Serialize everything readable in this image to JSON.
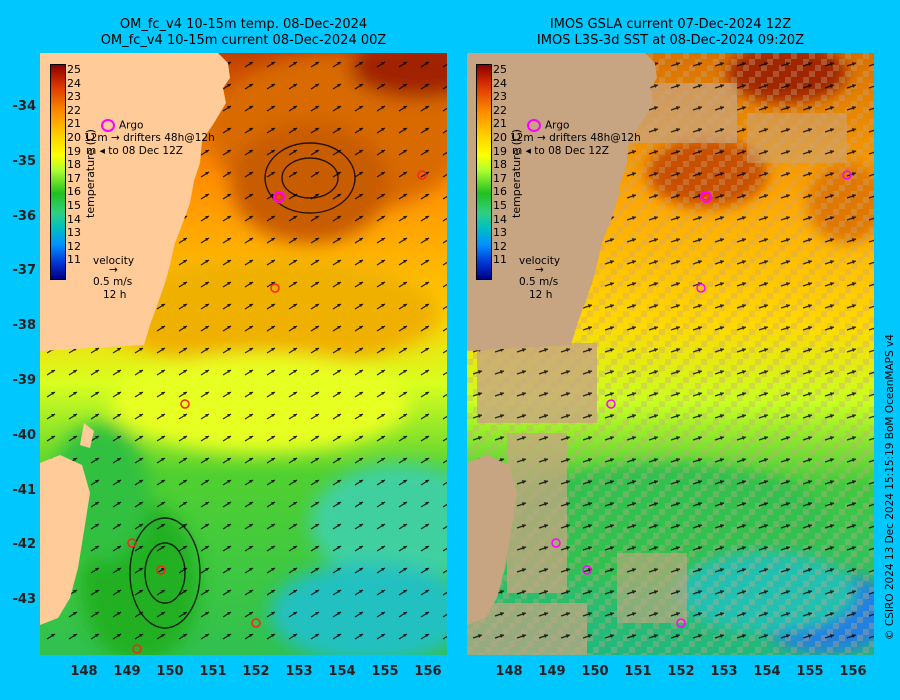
{
  "left_panel": {
    "title_line1": "OM_fc_v4  10-15m temp. 08-Dec-2024",
    "title_line2": "OM_fc_v4  10-15m current 08-Dec-2024 00Z"
  },
  "right_panel": {
    "title_line1": "IMOS GSLA current 07-Dec-2024 12Z",
    "title_line2": "IMOS L3S-3d SST at 08-Dec-2024 09:20Z"
  },
  "colorbar": {
    "ticks": [
      "25",
      "24",
      "23",
      "22",
      "21",
      "20",
      "19",
      "18",
      "17",
      "16",
      "15",
      "14",
      "13",
      "12",
      "11"
    ],
    "unit": "temperature (C)"
  },
  "legend": {
    "argo": "Argo",
    "drifters_a": "12m",
    "drifters_b": "drifters 48h@12h",
    "drifters_c": "to 08 Dec 12Z",
    "drifters_d": "m",
    "velocity_title": "velocity",
    "velocity_scale": "0.5 m/s",
    "velocity_time": "12 h"
  },
  "axes": {
    "lat_labels": [
      "-34",
      "-35",
      "-36",
      "-37",
      "-38",
      "-39",
      "-40",
      "-41",
      "-42",
      "-43"
    ],
    "lon_labels": [
      "148",
      "149",
      "150",
      "151",
      "152",
      "153",
      "154",
      "155",
      "156"
    ]
  },
  "credit": "© CSIRO 2024   13 Dec 2024 15:15:19 BoM OceanMAPS v4",
  "colors": {
    "background": "#00c8ff",
    "land": "#ffcc99",
    "missing_data": "#c8a582",
    "argo_marker": "#ff00ff",
    "drifter_marker": "#ff2020"
  },
  "chart_data": {
    "type": "heatmap",
    "lat_range": [
      -43.9,
      -33.1
    ],
    "lon_range": [
      147.4,
      156.4
    ],
    "colorbar_range": [
      11,
      25
    ],
    "argo_floats": [
      {
        "lon": 152.6,
        "lat": -35.65
      },
      {
        "lon": 155.9,
        "lat": -35.25
      },
      {
        "lon": 152.5,
        "lat": -37.3
      },
      {
        "lon": 150.4,
        "lat": -39.45
      },
      {
        "lon": 149.05,
        "lat": -41.95
      },
      {
        "lon": 149.8,
        "lat": -42.45
      },
      {
        "lon": 152.0,
        "lat": -43.45
      },
      {
        "lon": 149.2,
        "lat": -43.9
      }
    ]
  }
}
